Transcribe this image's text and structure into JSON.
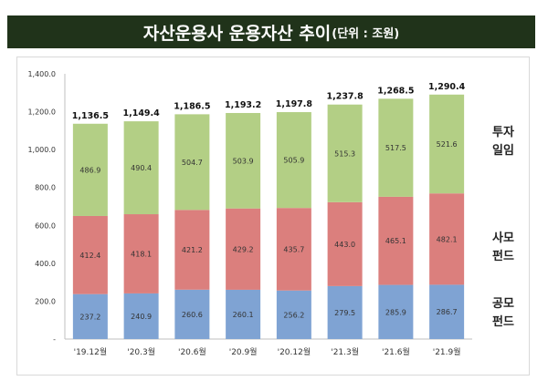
{
  "title": {
    "main": "자산운용사 운용자산 추이",
    "unit": "(단위 : 조원)"
  },
  "chart_data": {
    "type": "bar",
    "stacked": true,
    "categories": [
      "'19.12월",
      "'20.3월",
      "'20.6월",
      "'20.9월",
      "'20.12월",
      "'21.3월",
      "'21.6월",
      "'21.9월"
    ],
    "series": [
      {
        "name": "공모펀드",
        "color": "#7fa3d3",
        "values": [
          237.2,
          240.9,
          260.6,
          260.1,
          256.2,
          279.5,
          285.9,
          286.7
        ]
      },
      {
        "name": "사모펀드",
        "color": "#db7f7d",
        "values": [
          412.4,
          418.1,
          421.2,
          429.2,
          435.7,
          443.0,
          465.1,
          482.1
        ]
      },
      {
        "name": "투자일임",
        "color": "#b3cf85",
        "values": [
          486.9,
          490.4,
          504.7,
          503.9,
          505.9,
          515.3,
          517.5,
          521.6
        ]
      }
    ],
    "totals": [
      "1,136.5",
      "1,149.4",
      "1,186.5",
      "1,193.2",
      "1,197.8",
      "1,237.8",
      "1,268.5",
      "1,290.4"
    ],
    "yticks": [
      "-",
      "200.0",
      "400.0",
      "600.0",
      "800.0",
      "1,000.0",
      "1,200.0",
      "1,400.0"
    ],
    "ylim": [
      0,
      1400
    ],
    "grid": false,
    "legend_position": "right",
    "legend_lines": {
      "투자일임": [
        "투자",
        "일임"
      ],
      "사모펀드": [
        "사모",
        "펀드"
      ],
      "공모펀드": [
        "공모",
        "펀드"
      ]
    }
  }
}
